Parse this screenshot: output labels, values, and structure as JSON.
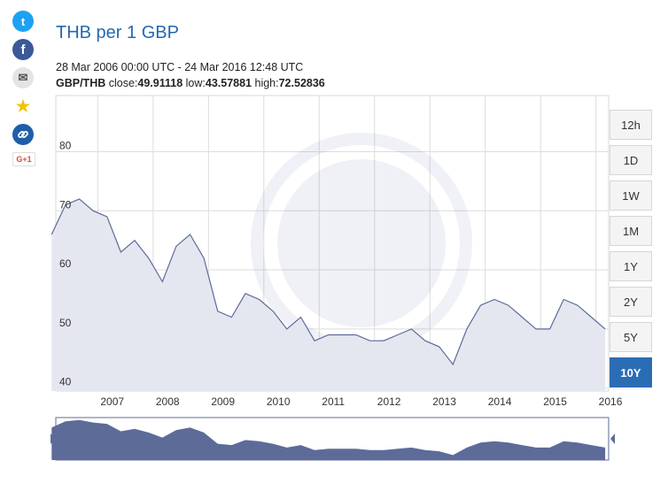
{
  "share": {
    "twitter_glyph": "t",
    "facebook_glyph": "f",
    "mail_glyph": "✉",
    "star_glyph": "★",
    "link_glyph": "🔗",
    "gplus_glyph": "G+1"
  },
  "header": {
    "title": "THB per 1 GBP",
    "range": "28 Mar 2006 00:00 UTC - 24 Mar 2016 12:48 UTC",
    "pair": "GBP/THB",
    "close_label": "close:",
    "close_value": "49.91118",
    "low_label": "low:",
    "low_value": "43.57881",
    "high_label": "high:",
    "high_value": "72.52836"
  },
  "buttons": [
    {
      "label": "12h",
      "active": false
    },
    {
      "label": "1D",
      "active": false
    },
    {
      "label": "1W",
      "active": false
    },
    {
      "label": "1M",
      "active": false
    },
    {
      "label": "1Y",
      "active": false
    },
    {
      "label": "2Y",
      "active": false
    },
    {
      "label": "5Y",
      "active": false
    },
    {
      "label": "10Y",
      "active": true
    }
  ],
  "colors": {
    "line": "#5d6b99",
    "fill": "#e4e7f0",
    "navigator": "#5d6b99",
    "grid": "#dcdcdc",
    "axis_text": "#333"
  },
  "chart_data": {
    "type": "area",
    "title": "THB per 1 GBP",
    "series": [
      {
        "x": [
          "2006-03",
          "2006-06",
          "2006-09",
          "2006-12",
          "2007-03",
          "2007-06",
          "2007-09",
          "2007-12",
          "2008-03",
          "2008-06",
          "2008-09",
          "2008-12",
          "2009-03",
          "2009-06",
          "2009-09",
          "2009-12",
          "2010-03",
          "2010-06",
          "2010-09",
          "2010-12",
          "2011-03",
          "2011-06",
          "2011-09",
          "2011-12",
          "2012-03",
          "2012-06",
          "2012-09",
          "2012-12",
          "2013-03",
          "2013-06",
          "2013-09",
          "2013-12",
          "2014-03",
          "2014-06",
          "2014-09",
          "2014-12",
          "2015-03",
          "2015-06",
          "2015-09",
          "2015-12",
          "2016-03"
        ],
        "values": [
          66,
          71,
          72,
          70,
          69,
          63,
          65,
          62,
          58,
          64,
          66,
          62,
          53,
          52,
          56,
          55,
          53,
          50,
          52,
          48,
          49,
          49,
          49,
          48,
          48,
          49,
          50,
          48,
          47,
          44,
          50,
          54,
          55,
          54,
          52,
          50,
          50,
          55,
          54,
          52,
          50
        ]
      }
    ],
    "x_ticks": [
      "2007",
      "2008",
      "2009",
      "2010",
      "2011",
      "2012",
      "2013",
      "2014",
      "2015",
      "2016"
    ],
    "y_ticks": [
      40,
      50,
      60,
      70,
      80
    ],
    "ylim": [
      39.5,
      89.5
    ],
    "grid": true,
    "legend": "none"
  }
}
